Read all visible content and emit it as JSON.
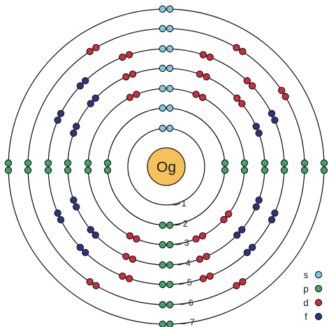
{
  "element": {
    "symbol": "Og"
  },
  "orbital_colors": {
    "s": "#80c9e6",
    "p": "#3ea56c",
    "d": "#d42a3a",
    "f": "#2d3383"
  },
  "shells": [
    {
      "number": "1",
      "electrons": [
        "s",
        "s"
      ]
    },
    {
      "number": "2",
      "electrons": [
        "s",
        "s",
        "p",
        "p",
        "p",
        "p",
        "p",
        "p"
      ]
    },
    {
      "number": "3",
      "electrons": [
        "s",
        "s",
        "p",
        "p",
        "p",
        "p",
        "p",
        "p",
        "d",
        "d",
        "d",
        "d",
        "d",
        "d",
        "d",
        "d",
        "d",
        "d"
      ]
    },
    {
      "number": "4",
      "electrons": [
        "s",
        "s",
        "p",
        "p",
        "p",
        "p",
        "p",
        "p",
        "d",
        "d",
        "d",
        "d",
        "d",
        "d",
        "d",
        "d",
        "d",
        "d",
        "f",
        "f",
        "f",
        "f",
        "f",
        "f",
        "f",
        "f",
        "f",
        "f",
        "f",
        "f",
        "f",
        "f"
      ]
    },
    {
      "number": "5",
      "electrons": [
        "s",
        "s",
        "p",
        "p",
        "p",
        "p",
        "p",
        "p",
        "d",
        "d",
        "d",
        "d",
        "d",
        "d",
        "d",
        "d",
        "d",
        "d",
        "f",
        "f",
        "f",
        "f",
        "f",
        "f",
        "f",
        "f",
        "f",
        "f",
        "f",
        "f",
        "f",
        "f"
      ]
    },
    {
      "number": "6",
      "electrons": [
        "s",
        "s",
        "p",
        "p",
        "p",
        "p",
        "p",
        "p",
        "d",
        "d",
        "d",
        "d",
        "d",
        "d",
        "d",
        "d",
        "d",
        "d"
      ]
    },
    {
      "number": "7",
      "electrons": [
        "s",
        "s",
        "p",
        "p",
        "p",
        "p",
        "p",
        "p"
      ]
    }
  ],
  "legend": [
    {
      "label": "s",
      "orbital": "s"
    },
    {
      "label": "p",
      "orbital": "p"
    },
    {
      "label": "d",
      "orbital": "d"
    },
    {
      "label": "f",
      "orbital": "f"
    }
  ]
}
